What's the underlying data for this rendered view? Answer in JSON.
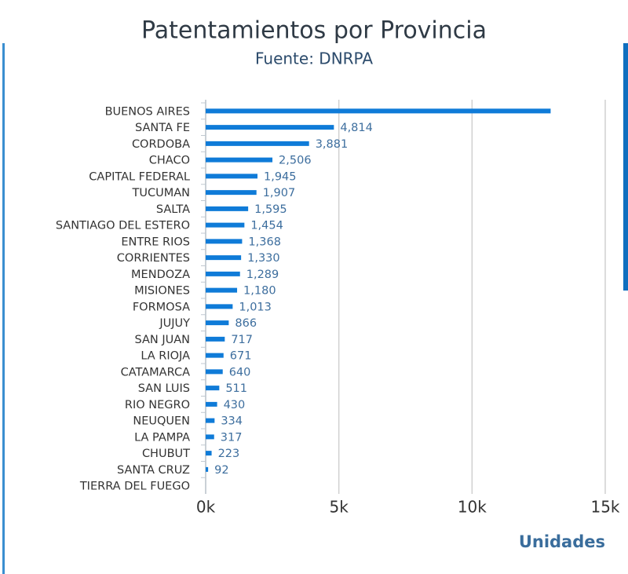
{
  "chart_data": {
    "type": "hbar",
    "title": "Patentamientos por Provincia",
    "subtitle": "Fuente: DNRPA",
    "categories": [
      "BUENOS AIRES",
      "SANTA FE",
      "CORDOBA",
      "CHACO",
      "CAPITAL FEDERAL",
      "TUCUMAN",
      "SALTA",
      "SANTIAGO DEL ESTERO",
      "ENTRE RIOS",
      "CORRIENTES",
      "MENDOZA",
      "MISIONES",
      "FORMOSA",
      "JUJUY",
      "SAN JUAN",
      "LA RIOJA",
      "CATAMARCA",
      "SAN LUIS",
      "RIO NEGRO",
      "NEUQUEN",
      "LA PAMPA",
      "CHUBUT",
      "SANTA CRUZ",
      "TIERRA DEL FUEGO"
    ],
    "values": [
      12950,
      4814,
      3881,
      2506,
      1945,
      1907,
      1595,
      1454,
      1368,
      1330,
      1289,
      1180,
      1013,
      866,
      717,
      671,
      640,
      511,
      430,
      334,
      317,
      223,
      92,
      null
    ],
    "value_labels": [
      null,
      "4,814",
      "3,881",
      "2,506",
      "1,945",
      "1,907",
      "1,595",
      "1,454",
      "1,368",
      "1,330",
      "1,289",
      "1,180",
      "1,013",
      "866",
      "717",
      "671",
      "640",
      "511",
      "430",
      "334",
      "317",
      "223",
      "92",
      null
    ],
    "color": "#0f7bd8",
    "xlim": [
      0,
      15000
    ],
    "xticks": [
      {
        "value": 0,
        "label": "0k"
      },
      {
        "value": 5000,
        "label": "5k"
      },
      {
        "value": 10000,
        "label": "10k"
      },
      {
        "value": 15000,
        "label": "15k"
      }
    ],
    "x_label": "Unidades",
    "grid": true
  }
}
